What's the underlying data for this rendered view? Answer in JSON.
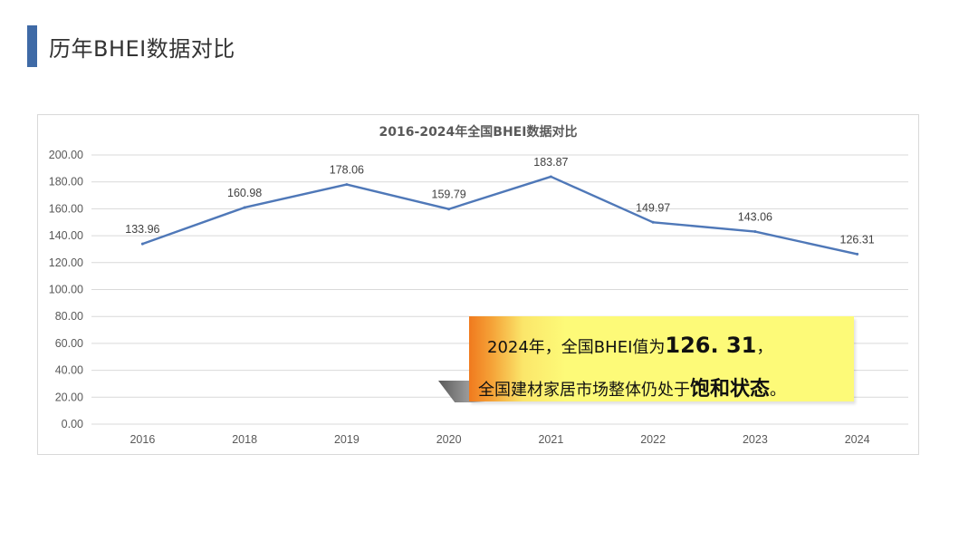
{
  "page": {
    "title": "历年BHEI数据对比"
  },
  "chart_data": {
    "type": "line",
    "title": "2016-2024年全国BHEI数据对比",
    "categories": [
      "2016",
      "2018",
      "2019",
      "2020",
      "2021",
      "2022",
      "2023",
      "2024"
    ],
    "series": [
      {
        "values": [
          133.96,
          160.98,
          178.06,
          159.79,
          183.87,
          149.97,
          143.06,
          126.31
        ]
      }
    ],
    "data_labels": [
      "133.96",
      "160.98",
      "178.06",
      "159.79",
      "183.87",
      "149.97",
      "143.06",
      "126.31"
    ],
    "ylim": [
      0,
      200
    ],
    "y_ticks": [
      "0.00",
      "20.00",
      "40.00",
      "60.00",
      "80.00",
      "100.00",
      "120.00",
      "140.00",
      "160.00",
      "180.00",
      "200.00"
    ],
    "grid": true,
    "line_color": "#4f78b8"
  },
  "callout": {
    "line1_prefix": "2024年，全国BHEI值为",
    "line1_value": "126. 31",
    "line1_suffix": "，",
    "line2_prefix": "全国建材家居市场整体仍处于",
    "line2_emphasis": "饱和状态",
    "line2_suffix": "。"
  }
}
